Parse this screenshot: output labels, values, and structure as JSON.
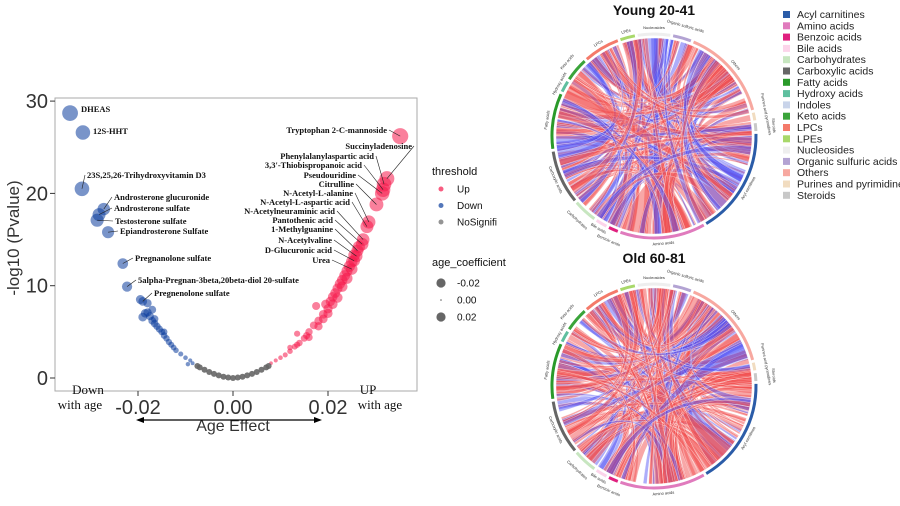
{
  "chart_data": [
    {
      "type": "scatter",
      "xlabel": "Age Effect",
      "ylabel": "-log10 (Pvalue)",
      "xlim": [
        -0.037,
        0.038
      ],
      "ylim": [
        -0.8,
        31
      ],
      "x_ticks": [
        "-0.02",
        "0.00",
        "0.02"
      ],
      "y_ticks": [
        "0",
        "10",
        "20",
        "30"
      ],
      "x_tick_values": [
        -0.02,
        0,
        0.02
      ],
      "y_tick_values": [
        0,
        10,
        20,
        30
      ],
      "grid": false,
      "annotations": {
        "down": [
          "Down",
          "with age"
        ],
        "up": [
          "UP",
          "with age"
        ]
      },
      "legend": {
        "placement": "right",
        "threshold_title": "threshold",
        "threshold_items": [
          {
            "label": "Up",
            "color": "#f5174a"
          },
          {
            "label": "Down",
            "color": "#0b3d9c"
          },
          {
            "label": "NoSignifi",
            "color": "#666666"
          }
        ],
        "size_title": "age_coefficient",
        "size_items": [
          "-0.02",
          "0.00",
          "0.02"
        ],
        "size_values": [
          -0.02,
          0,
          0.02
        ]
      },
      "labeled_points": [
        {
          "name": "DHEAS",
          "x": -0.0343,
          "y": 28.7,
          "group": "Down"
        },
        {
          "name": "12S-HHT",
          "x": -0.0316,
          "y": 26.6,
          "group": "Down"
        },
        {
          "name": "23S,25,26-Trihydroxyvitamin D3",
          "x": -0.0318,
          "y": 20.5,
          "group": "Down"
        },
        {
          "name": "Androsterone glucuronide",
          "x": -0.0272,
          "y": 18.3,
          "group": "Down"
        },
        {
          "name": "Androsterone sulfate",
          "x": -0.0282,
          "y": 17.7,
          "group": "Down"
        },
        {
          "name": "Testosterone sulfate",
          "x": -0.0286,
          "y": 17.1,
          "group": "Down"
        },
        {
          "name": "Epiandrosterone Sulfate",
          "x": -0.0263,
          "y": 15.8,
          "group": "Down"
        },
        {
          "name": "Pregnanolone sulfate",
          "x": -0.0232,
          "y": 12.4,
          "group": "Down"
        },
        {
          "name": "5alpha-Pregnan-3beta,20beta-diol 20-sulfate",
          "x": -0.0223,
          "y": 9.9,
          "group": "Down"
        },
        {
          "name": "Pregnenolone sulfate",
          "x": -0.019,
          "y": 8.3,
          "group": "Down"
        },
        {
          "name": "Tryptophan 2-C-mannoside",
          "x": 0.0352,
          "y": 26.2,
          "group": "Up"
        },
        {
          "name": "Succinyladenosine",
          "x": 0.0324,
          "y": 21.6,
          "group": "Up"
        },
        {
          "name": "Phenylalanylaspartic acid",
          "x": 0.0318,
          "y": 21.0,
          "group": "Up"
        },
        {
          "name": "3,3'-Thiobispropanoic acid",
          "x": 0.0316,
          "y": 20.4,
          "group": "Up"
        },
        {
          "name": "Pseudouridine",
          "x": 0.0314,
          "y": 20.0,
          "group": "Up"
        },
        {
          "name": "Citrulline",
          "x": 0.0302,
          "y": 18.8,
          "group": "Up"
        },
        {
          "name": "N-Acetyl-L-alanine",
          "x": 0.0286,
          "y": 16.9,
          "group": "Up"
        },
        {
          "name": "N-Acetyl-L-aspartic acid",
          "x": 0.0282,
          "y": 16.4,
          "group": "Up"
        },
        {
          "name": "N-Acetylneuraminic acid",
          "x": 0.0274,
          "y": 15.0,
          "group": "Up"
        },
        {
          "name": "Pantothenic acid",
          "x": 0.0272,
          "y": 14.5,
          "group": "Up"
        },
        {
          "name": "1-Methylguanine",
          "x": 0.0262,
          "y": 13.8,
          "group": "Up"
        },
        {
          "name": "N-Acetylvaline",
          "x": 0.026,
          "y": 13.2,
          "group": "Up"
        },
        {
          "name": "D-Glucuronic acid",
          "x": 0.0255,
          "y": 12.7,
          "group": "Up"
        },
        {
          "name": "Urea",
          "x": 0.025,
          "y": 11.8,
          "group": "Up"
        }
      ],
      "series": [
        {
          "group": "Down",
          "points": [
            [
              -0.0085,
              1.6
            ],
            [
              -0.009,
              1.9
            ],
            [
              -0.01,
              2.2
            ],
            [
              -0.011,
              2.6
            ],
            [
              -0.012,
              3.0
            ],
            [
              -0.0125,
              3.3
            ],
            [
              -0.013,
              3.6
            ],
            [
              -0.0135,
              3.9
            ],
            [
              -0.014,
              4.3
            ],
            [
              -0.0145,
              4.6
            ],
            [
              -0.015,
              5.0
            ],
            [
              -0.0155,
              5.3
            ],
            [
              -0.016,
              5.6
            ],
            [
              -0.0165,
              5.9
            ],
            [
              -0.017,
              6.2
            ],
            [
              -0.0175,
              6.7
            ],
            [
              -0.0165,
              6.4
            ],
            [
              -0.018,
              7.1
            ],
            [
              -0.0185,
              7.0
            ],
            [
              -0.019,
              6.6
            ],
            [
              -0.0195,
              8.5
            ],
            [
              -0.018,
              8.1
            ],
            [
              -0.017,
              7.4
            ],
            [
              -0.0145,
              5.0
            ],
            [
              -0.0095,
              1.5
            ]
          ]
        },
        {
          "group": "Up",
          "points": [
            [
              0.008,
              1.6
            ],
            [
              0.009,
              1.9
            ],
            [
              0.01,
              2.2
            ],
            [
              0.011,
              2.5
            ],
            [
              0.012,
              2.9
            ],
            [
              0.013,
              3.4
            ],
            [
              0.0135,
              4.8
            ],
            [
              0.014,
              3.8
            ],
            [
              0.015,
              4.3
            ],
            [
              0.016,
              5.0
            ],
            [
              0.017,
              5.7
            ],
            [
              0.0175,
              7.8
            ],
            [
              0.018,
              6.2
            ],
            [
              0.019,
              6.9
            ],
            [
              0.0195,
              8.0
            ],
            [
              0.02,
              7.5
            ],
            [
              0.0205,
              8.3
            ],
            [
              0.021,
              8.8
            ],
            [
              0.0215,
              9.2
            ],
            [
              0.022,
              9.7
            ],
            [
              0.0225,
              10.2
            ],
            [
              0.023,
              10.6
            ],
            [
              0.0235,
              11.1
            ],
            [
              0.024,
              11.6
            ],
            [
              0.0245,
              12.1
            ],
            [
              0.025,
              12.6
            ],
            [
              0.016,
              4.4
            ],
            [
              0.018,
              5.6
            ],
            [
              0.02,
              7.0
            ],
            [
              0.022,
              8.7
            ],
            [
              0.024,
              10.8
            ],
            [
              0.019,
              6.4
            ],
            [
              0.021,
              8.0
            ],
            [
              0.023,
              9.9
            ],
            [
              0.0155,
              4.6
            ],
            [
              0.0255,
              13.3
            ],
            [
              0.0265,
              14.2
            ],
            [
              0.012,
              3.3
            ],
            [
              0.0135,
              3.6
            ]
          ]
        },
        {
          "group": "NoSignifi",
          "points": [
            [
              -0.0075,
              1.3
            ],
            [
              -0.007,
              1.15
            ],
            [
              -0.006,
              0.9
            ],
            [
              -0.005,
              0.65
            ],
            [
              -0.004,
              0.45
            ],
            [
              -0.003,
              0.28
            ],
            [
              -0.002,
              0.14
            ],
            [
              -0.001,
              0.05
            ],
            [
              0,
              0
            ],
            [
              0.001,
              0.05
            ],
            [
              0.002,
              0.14
            ],
            [
              0.003,
              0.28
            ],
            [
              0.004,
              0.45
            ],
            [
              0.005,
              0.65
            ],
            [
              0.006,
              0.9
            ],
            [
              0.007,
              1.15
            ],
            [
              0.0075,
              1.3
            ]
          ]
        }
      ]
    },
    {
      "type": "chord",
      "panels": [
        {
          "title": "Young 20-41"
        },
        {
          "title": "Old 60-81"
        }
      ],
      "chord_colors": {
        "positive": "#f25050",
        "negative": "#4a4af5"
      },
      "categories": [
        {
          "name": "Acyl carnitines",
          "color": "#2b5ca8"
        },
        {
          "name": "Amino acids",
          "color": "#e07bbd"
        },
        {
          "name": "Benzoic acids",
          "color": "#e0207f"
        },
        {
          "name": "Bile acids",
          "color": "#fcd4ea"
        },
        {
          "name": "Carbohydrates",
          "color": "#c7e6c0"
        },
        {
          "name": "Carboxylic acids",
          "color": "#666666"
        },
        {
          "name": "Fatty acids",
          "color": "#2a9a2a"
        },
        {
          "name": "Hydroxy acids",
          "color": "#5fbf9f"
        },
        {
          "name": "Indoles",
          "color": "#c9d4ea"
        },
        {
          "name": "Keto acids",
          "color": "#3aa43a"
        },
        {
          "name": "LPCs",
          "color": "#f47a6a"
        },
        {
          "name": "LPEs",
          "color": "#a8d86a"
        },
        {
          "name": "Nucleosides",
          "color": "#eeeeee"
        },
        {
          "name": "Organic sulfuric acids",
          "color": "#b3a3d3"
        },
        {
          "name": "Others",
          "color": "#f7a8a0"
        },
        {
          "name": "Purines and pyrimidines",
          "color": "#f1dcc0"
        },
        {
          "name": "Steroids",
          "color": "#c8c8c8"
        }
      ]
    }
  ]
}
